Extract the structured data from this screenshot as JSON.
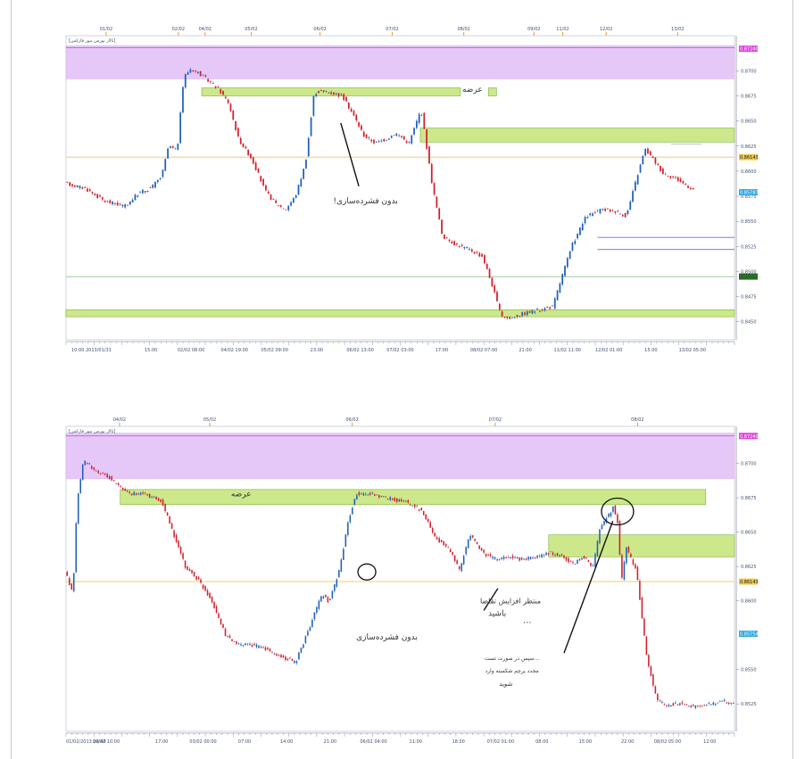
{
  "colors": {
    "supply_zone": "#cce88a",
    "sell_zone": "#e6c8f8",
    "bull": "#1f5fb8",
    "bear": "#d21e2a",
    "grid": "#d8d8d8",
    "axis": "#707a90",
    "yellow_line": "#f0c850",
    "green_line": "#7ab87a"
  },
  "chart_data": [
    {
      "type": "candlestick",
      "title": "",
      "legend_text": "[تالار بورس نیوز فارکس]",
      "top_date_labels": [
        {
          "text": "01/02",
          "x": 0.06
        },
        {
          "text": "02/02",
          "x": 0.168
        },
        {
          "text": "04/02",
          "x": 0.208
        },
        {
          "text": "05/02",
          "x": 0.277
        },
        {
          "text": "06/02",
          "x": 0.38
        },
        {
          "text": "07/02",
          "x": 0.488
        },
        {
          "text": "08/02",
          "x": 0.595
        },
        {
          "text": "09/02",
          "x": 0.7
        },
        {
          "text": "11/02",
          "x": 0.743
        },
        {
          "text": "12/02",
          "x": 0.808
        },
        {
          "text": "13/02",
          "x": 0.915
        }
      ],
      "time_labels": [
        {
          "text": "10:00 2013/01/31",
          "x": 0.008
        },
        {
          "text": "15:00",
          "x": 0.127
        },
        {
          "text": "02/02 08:00",
          "x": 0.187
        },
        {
          "text": "04/02 19:00",
          "x": 0.252
        },
        {
          "text": "05/02 09:00",
          "x": 0.312
        },
        {
          "text": "23:00",
          "x": 0.375
        },
        {
          "text": "06/02 13:00",
          "x": 0.44
        },
        {
          "text": "07/02 03:00",
          "x": 0.5
        },
        {
          "text": "17:00",
          "x": 0.562
        },
        {
          "text": "08/02 07:00",
          "x": 0.625
        },
        {
          "text": "21:00",
          "x": 0.687
        },
        {
          "text": "11/02 11:00",
          "x": 0.75
        },
        {
          "text": "12/02 01:00",
          "x": 0.812
        },
        {
          "text": "15:00",
          "x": 0.875
        },
        {
          "text": "13/02 05:00",
          "x": 0.937
        }
      ],
      "y_ticks": [
        {
          "text": "0.8700",
          "v": 0.87
        },
        {
          "text": "0.8675",
          "v": 0.8675
        },
        {
          "text": "0.8650",
          "v": 0.865
        },
        {
          "text": "0.8625",
          "v": 0.8625
        },
        {
          "text": "0.8600",
          "v": 0.86
        },
        {
          "text": "0.8575",
          "v": 0.8575
        },
        {
          "text": "0.8550",
          "v": 0.855
        },
        {
          "text": "0.8525",
          "v": 0.8525
        },
        {
          "text": "0.8500",
          "v": 0.85
        },
        {
          "text": "0.8475",
          "v": 0.8475
        },
        {
          "text": "0.8450",
          "v": 0.845
        }
      ],
      "ylim": [
        0.8432,
        0.8735
      ],
      "badges": [
        {
          "text": "0.87240",
          "v": 0.8722,
          "color": "#e040e0",
          "fg": "#ffffff"
        },
        {
          "text": "0.86143",
          "v": 0.8614,
          "color": "#f0c850",
          "fg": "#222222"
        },
        {
          "text": "0.85787",
          "v": 0.8579,
          "color": "#30a8e8",
          "fg": "#ffffff"
        },
        {
          "text": "",
          "v": 0.8495,
          "color": "#2a6a2a",
          "fg": "#ffffff"
        }
      ],
      "zones": [
        {
          "kind": "sell",
          "y0": 0.8725,
          "y1": 0.8692,
          "x0": 0,
          "x1": 1
        },
        {
          "kind": "supply",
          "y0": 0.8683,
          "y1": 0.8675,
          "x0": 0.203,
          "x1": 0.59,
          "label": "عرضه",
          "label_x": 0.608
        },
        {
          "kind": "supply",
          "y0": 0.8683,
          "y1": 0.8675,
          "x0": 0.632,
          "x1": 0.644
        },
        {
          "kind": "supply",
          "y0": 0.8643,
          "y1": 0.8629,
          "x0": 0.53,
          "x1": 1
        },
        {
          "kind": "supply",
          "y0": 0.8462,
          "y1": 0.8455,
          "x0": 0,
          "x1": 1
        }
      ],
      "hlines": [
        {
          "v": 0.8723,
          "color": "#d040d0",
          "x0": 0,
          "x1": 1
        },
        {
          "v": 0.8614,
          "color": "#f0c850",
          "x0": 0,
          "x1": 1
        },
        {
          "v": 0.8495,
          "color": "#7ab87a",
          "x0": 0,
          "x1": 1
        },
        {
          "v": 0.8534,
          "color": "#6a6ad0",
          "x0": 0.795,
          "x1": 1
        },
        {
          "v": 0.8522,
          "color": "#5050a0",
          "x0": 0.795,
          "x1": 1
        },
        {
          "v": 0.8627,
          "color": "#bbbbbb",
          "x0": 0.905,
          "x1": 0.95
        }
      ],
      "path": [
        [
          0,
          0.8588
        ],
        [
          0.03,
          0.8583
        ],
        [
          0.06,
          0.857
        ],
        [
          0.09,
          0.8565
        ],
        [
          0.11,
          0.8578
        ],
        [
          0.13,
          0.8584
        ],
        [
          0.145,
          0.8595
        ],
        [
          0.155,
          0.8625
        ],
        [
          0.168,
          0.862
        ],
        [
          0.178,
          0.8694
        ],
        [
          0.188,
          0.8702
        ],
        [
          0.2,
          0.8698
        ],
        [
          0.215,
          0.869
        ],
        [
          0.23,
          0.8682
        ],
        [
          0.245,
          0.8668
        ],
        [
          0.26,
          0.8632
        ],
        [
          0.28,
          0.8612
        ],
        [
          0.3,
          0.858
        ],
        [
          0.315,
          0.8568
        ],
        [
          0.33,
          0.8562
        ],
        [
          0.345,
          0.8575
        ],
        [
          0.36,
          0.8608
        ],
        [
          0.373,
          0.8678
        ],
        [
          0.385,
          0.868
        ],
        [
          0.4,
          0.8678
        ],
        [
          0.415,
          0.8675
        ],
        [
          0.43,
          0.8658
        ],
        [
          0.448,
          0.8635
        ],
        [
          0.465,
          0.8628
        ],
        [
          0.48,
          0.8632
        ],
        [
          0.495,
          0.8638
        ],
        [
          0.515,
          0.8628
        ],
        [
          0.533,
          0.8662
        ],
        [
          0.55,
          0.8585
        ],
        [
          0.565,
          0.8535
        ],
        [
          0.585,
          0.8527
        ],
        [
          0.605,
          0.8522
        ],
        [
          0.625,
          0.8515
        ],
        [
          0.64,
          0.8485
        ],
        [
          0.652,
          0.8457
        ],
        [
          0.665,
          0.8453
        ],
        [
          0.685,
          0.8458
        ],
        [
          0.71,
          0.8462
        ],
        [
          0.73,
          0.8465
        ],
        [
          0.745,
          0.8498
        ],
        [
          0.76,
          0.8528
        ],
        [
          0.78,
          0.8555
        ],
        [
          0.805,
          0.8562
        ],
        [
          0.825,
          0.856
        ],
        [
          0.84,
          0.8555
        ],
        [
          0.855,
          0.8592
        ],
        [
          0.868,
          0.8622
        ],
        [
          0.88,
          0.8612
        ],
        [
          0.895,
          0.8598
        ],
        [
          0.91,
          0.8594
        ],
        [
          0.925,
          0.8588
        ],
        [
          0.94,
          0.8582
        ]
      ],
      "annotations": [
        {
          "text": "بدون فشرده‌سازی!",
          "x": 0.448,
          "v": 0.8568,
          "size": 9
        },
        {
          "text": "عرضه",
          "x": 0.608,
          "v": 0.8679,
          "size": 9
        }
      ],
      "arrows": [
        {
          "x0": 0.411,
          "v0": 0.8648,
          "x1": 0.438,
          "v1": 0.8585
        }
      ],
      "circles": []
    },
    {
      "type": "candlestick",
      "title": "",
      "legend_text": "[تالار بورس نیوز فارکس]",
      "top_date_labels": [
        {
          "text": "04/02",
          "x": 0.08
        },
        {
          "text": "05/02",
          "x": 0.215
        },
        {
          "text": "06/02",
          "x": 0.428
        },
        {
          "text": "07/02",
          "x": 0.642
        },
        {
          "text": "08/02",
          "x": 0.855
        }
      ],
      "time_labels": [
        {
          "text": "01/02/2013 23:48",
          "x": 0.0
        },
        {
          "text": "04/02 10:00",
          "x": 0.06
        },
        {
          "text": "17:00",
          "x": 0.143
        },
        {
          "text": "03/02 00:00",
          "x": 0.205
        },
        {
          "text": "07:00",
          "x": 0.267
        },
        {
          "text": "14:00",
          "x": 0.33
        },
        {
          "text": "21:00",
          "x": 0.395
        },
        {
          "text": "06/02 04:00",
          "x": 0.46
        },
        {
          "text": "11:00",
          "x": 0.523
        },
        {
          "text": "18:00",
          "x": 0.587
        },
        {
          "text": "07/02 01:00",
          "x": 0.65
        },
        {
          "text": "08:00",
          "x": 0.712
        },
        {
          "text": "15:00",
          "x": 0.777
        },
        {
          "text": "22:00",
          "x": 0.84
        },
        {
          "text": "08/02 05:00",
          "x": 0.9
        },
        {
          "text": "12:00",
          "x": 0.963
        }
      ],
      "y_ticks": [
        {
          "text": "0.8700",
          "v": 0.87
        },
        {
          "text": "0.8675",
          "v": 0.8675
        },
        {
          "text": "0.8650",
          "v": 0.865
        },
        {
          "text": "0.8625",
          "v": 0.8625
        },
        {
          "text": "0.8600",
          "v": 0.86
        },
        {
          "text": "0.8550",
          "v": 0.855
        },
        {
          "text": "0.8525",
          "v": 0.8525
        }
      ],
      "ylim": [
        0.8505,
        0.8727
      ],
      "badges": [
        {
          "text": "0.87240",
          "v": 0.872,
          "color": "#e040e0",
          "fg": "#ffffff"
        },
        {
          "text": "0.86143",
          "v": 0.8614,
          "color": "#f0c850",
          "fg": "#222222"
        },
        {
          "text": "0.85754",
          "v": 0.8576,
          "color": "#30a8e8",
          "fg": "#ffffff"
        }
      ],
      "zones": [
        {
          "kind": "sell",
          "y0": 0.8722,
          "y1": 0.8689,
          "x0": 0,
          "x1": 1
        },
        {
          "kind": "supply",
          "y0": 0.8681,
          "y1": 0.867,
          "x0": 0.081,
          "x1": 0.957,
          "label": "عرضه",
          "label_x": 0.262
        },
        {
          "kind": "supply",
          "y0": 0.8648,
          "y1": 0.8632,
          "x0": 0.722,
          "x1": 1
        }
      ],
      "hlines": [
        {
          "v": 0.872,
          "color": "#d040d0",
          "x0": 0,
          "x1": 1
        },
        {
          "v": 0.8614,
          "color": "#f0c850",
          "x0": 0,
          "x1": 1
        }
      ],
      "path": [
        [
          0,
          0.8622
        ],
        [
          0.012,
          0.8605
        ],
        [
          0.018,
          0.8672
        ],
        [
          0.028,
          0.8702
        ],
        [
          0.045,
          0.8695
        ],
        [
          0.065,
          0.869
        ],
        [
          0.085,
          0.8682
        ],
        [
          0.1,
          0.8678
        ],
        [
          0.12,
          0.8678
        ],
        [
          0.145,
          0.8672
        ],
        [
          0.165,
          0.8645
        ],
        [
          0.18,
          0.8625
        ],
        [
          0.2,
          0.8615
        ],
        [
          0.22,
          0.86
        ],
        [
          0.24,
          0.8575
        ],
        [
          0.26,
          0.8568
        ],
        [
          0.28,
          0.8568
        ],
        [
          0.3,
          0.8565
        ],
        [
          0.32,
          0.856
        ],
        [
          0.345,
          0.8555
        ],
        [
          0.365,
          0.858
        ],
        [
          0.385,
          0.8605
        ],
        [
          0.395,
          0.8598
        ],
        [
          0.41,
          0.8622
        ],
        [
          0.425,
          0.866
        ],
        [
          0.435,
          0.8678
        ],
        [
          0.455,
          0.8678
        ],
        [
          0.48,
          0.8675
        ],
        [
          0.51,
          0.8672
        ],
        [
          0.535,
          0.8665
        ],
        [
          0.555,
          0.8645
        ],
        [
          0.575,
          0.8638
        ],
        [
          0.59,
          0.8622
        ],
        [
          0.605,
          0.8648
        ],
        [
          0.625,
          0.8635
        ],
        [
          0.645,
          0.863
        ],
        [
          0.665,
          0.8632
        ],
        [
          0.685,
          0.863
        ],
        [
          0.705,
          0.8632
        ],
        [
          0.725,
          0.8635
        ],
        [
          0.745,
          0.8632
        ],
        [
          0.76,
          0.8627
        ],
        [
          0.775,
          0.8632
        ],
        [
          0.79,
          0.8625
        ],
        [
          0.8,
          0.8652
        ],
        [
          0.82,
          0.8668
        ],
        [
          0.828,
          0.8655
        ],
        [
          0.832,
          0.8612
        ],
        [
          0.84,
          0.8638
        ],
        [
          0.855,
          0.8622
        ],
        [
          0.87,
          0.856
        ],
        [
          0.885,
          0.8528
        ],
        [
          0.9,
          0.8524
        ],
        [
          0.92,
          0.8525
        ],
        [
          0.94,
          0.8523
        ],
        [
          0.96,
          0.8524
        ],
        [
          0.985,
          0.8527
        ],
        [
          1.0,
          0.8525
        ]
      ],
      "annotations": [
        {
          "text": "عرضه",
          "x": 0.262,
          "v": 0.8676,
          "size": 9
        },
        {
          "text": "بدون فشرده‌سازی",
          "x": 0.48,
          "v": 0.8572,
          "size": 9
        },
        {
          "text": "منتظر افزایش تقاضا",
          "x": 0.665,
          "v": 0.8598,
          "size": 8
        },
        {
          "text": "باشید",
          "x": 0.645,
          "v": 0.8589,
          "size": 9
        },
        {
          "text": "...",
          "x": 0.69,
          "v": 0.8584,
          "size": 10
        },
        {
          "text": "...سپس در صورت تست",
          "x": 0.667,
          "v": 0.8557,
          "size": 6
        },
        {
          "text": "مجدد پرچم شکسته وارد",
          "x": 0.667,
          "v": 0.8548,
          "size": 6
        },
        {
          "text": "شوید",
          "x": 0.658,
          "v": 0.8538,
          "size": 7
        }
      ],
      "arrows": [
        {
          "x0": 0.646,
          "v0": 0.8609,
          "x1": 0.625,
          "v1": 0.8593
        },
        {
          "x0": 0.818,
          "v0": 0.8658,
          "x1": 0.745,
          "v1": 0.8562
        }
      ],
      "circles": [
        {
          "x": 0.45,
          "v": 0.8621,
          "rx": 10,
          "ry": 9
        },
        {
          "x": 0.825,
          "v": 0.8665,
          "rx": 18,
          "ry": 15
        }
      ]
    }
  ]
}
